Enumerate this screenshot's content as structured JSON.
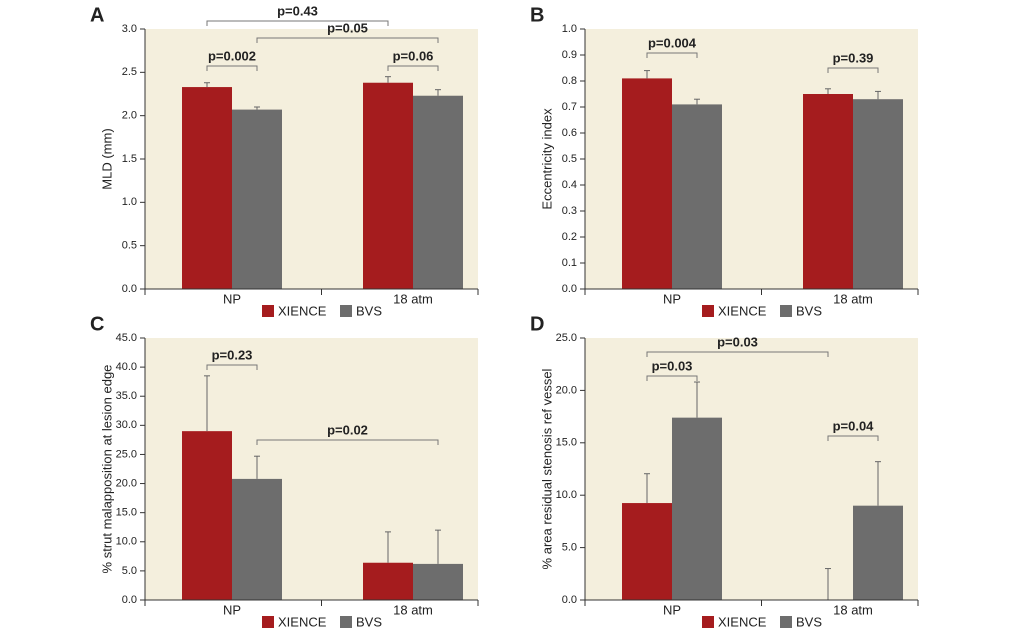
{
  "chart_data": [
    {
      "type": "bar",
      "label": "A",
      "ylabel": "MLD (mm)",
      "categories": [
        "NP",
        "18 atm"
      ],
      "series": [
        {
          "name": "XIENCE",
          "color": "#a51c1e",
          "values": [
            2.33,
            2.38
          ],
          "errors": [
            0.05,
            0.07
          ]
        },
        {
          "name": "BVS",
          "color": "#6d6d6d",
          "values": [
            2.07,
            2.23
          ],
          "errors": [
            0.03,
            0.07
          ]
        }
      ],
      "ylim": [
        0,
        3
      ],
      "yticks": [
        {
          "value": 0,
          "label": "0.0"
        },
        0.5,
        {
          "value": 1,
          "label": "1.0"
        },
        1.5,
        {
          "value": 2,
          "label": "2.0"
        },
        2.5,
        {
          "value": 3,
          "label": "3.0"
        }
      ],
      "annotations": [
        "p=0.43",
        "p=0.002",
        "p=0.05",
        "p=0.06"
      ],
      "grid": false
    },
    {
      "type": "bar",
      "label": "B",
      "ylabel": "Eccentricity index",
      "categories": [
        "NP",
        "18 atm"
      ],
      "series": [
        {
          "name": "XIENCE",
          "color": "#a51c1e",
          "values": [
            0.81,
            0.75
          ],
          "errors": [
            0.03,
            0.02
          ]
        },
        {
          "name": "BVS",
          "color": "#6d6d6d",
          "values": [
            0.71,
            0.73
          ],
          "errors": [
            0.02,
            0.03
          ]
        }
      ],
      "ylim": [
        0,
        1
      ],
      "yticks": [
        {
          "value": 0,
          "label": "0.0"
        },
        0.1,
        0.2,
        0.3,
        0.4,
        0.5,
        0.6,
        0.7,
        0.8,
        0.9,
        {
          "value": 1,
          "label": "1.0"
        }
      ],
      "annotations": [
        "p=0.004",
        "p=0.39"
      ],
      "grid": false
    },
    {
      "type": "bar",
      "label": "C",
      "ylabel": "% strut malapposition at lesion edge",
      "categories": [
        "NP",
        "18 atm"
      ],
      "series": [
        {
          "name": "XIENCE",
          "color": "#a51c1e",
          "values": [
            29.0,
            6.4
          ],
          "errors": [
            9.5,
            5.3
          ]
        },
        {
          "name": "BVS",
          "color": "#6d6d6d",
          "values": [
            20.8,
            6.2
          ],
          "errors": [
            3.9,
            5.8
          ]
        }
      ],
      "ylim": [
        0,
        45
      ],
      "yticks": [
        {
          "value": 0,
          "label": "0.0"
        },
        {
          "value": 5,
          "label": "5.0"
        },
        {
          "value": 10,
          "label": "10.0"
        },
        {
          "value": 15,
          "label": "15.0"
        },
        {
          "value": 20,
          "label": "20.0"
        },
        {
          "value": 25,
          "label": "25.0"
        },
        {
          "value": 30,
          "label": "30.0"
        },
        {
          "value": 35,
          "label": "35.0"
        },
        {
          "value": 40,
          "label": "40.0"
        },
        {
          "value": 45,
          "label": "45.0"
        }
      ],
      "annotations": [
        "p=0.23",
        "p=0.02"
      ],
      "grid": false
    },
    {
      "type": "bar",
      "label": "D",
      "ylabel": "% area residual stenosis ref vessel",
      "categories": [
        "NP",
        "18 atm"
      ],
      "series": [
        {
          "name": "XIENCE",
          "color": "#a51c1e",
          "values": [
            9.25,
            0
          ],
          "errors": [
            2.8,
            3.0
          ]
        },
        {
          "name": "BVS",
          "color": "#6d6d6d",
          "values": [
            17.4,
            9.0
          ],
          "errors": [
            3.4,
            4.2
          ]
        }
      ],
      "ylim": [
        0,
        25
      ],
      "yticks": [
        {
          "value": 0,
          "label": "0.0"
        },
        {
          "value": 5,
          "label": "5.0"
        },
        {
          "value": 10,
          "label": "10.0"
        },
        {
          "value": 15,
          "label": "15.0"
        },
        {
          "value": 20,
          "label": "20.0"
        },
        {
          "value": 25,
          "label": "25.0"
        }
      ],
      "annotations": [
        "p=0.03",
        "p=0.03",
        "p=0.04"
      ],
      "grid": false
    }
  ]
}
